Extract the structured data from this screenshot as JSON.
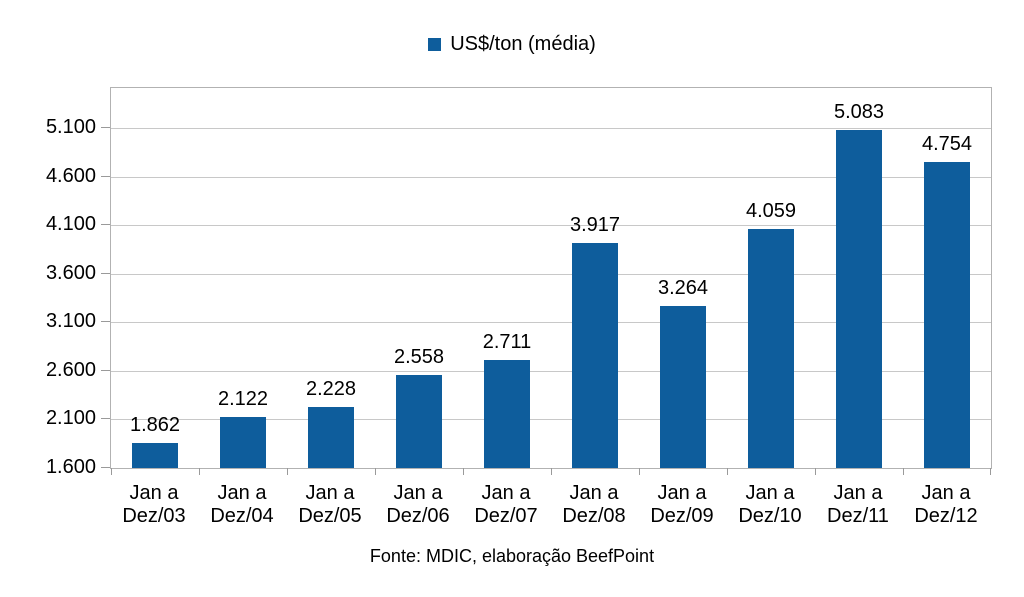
{
  "legend": {
    "label": "US$/ton (média)",
    "swatch_color": "#0e5d9c"
  },
  "source_note": "Fonte: MDIC, elaboração BeefPoint",
  "colors": {
    "bar": "#0e5d9c",
    "grid": "#c8c8c8",
    "plot_border": "#b2b2b2",
    "tick": "#9a9a9a",
    "text": "#000000",
    "background": "#ffffff"
  },
  "chart_data": {
    "type": "bar",
    "title": "",
    "series_name": "US$/ton (média)",
    "categories": [
      "Jan a Dez/03",
      "Jan a Dez/04",
      "Jan a Dez/05",
      "Jan a Dez/06",
      "Jan a Dez/07",
      "Jan a Dez/08",
      "Jan a Dez/09",
      "Jan a Dez/10",
      "Jan a Dez/11",
      "Jan a Dez/12"
    ],
    "categories_display": [
      "Jan a\nDez/03",
      "Jan a\nDez/04",
      "Jan a\nDez/05",
      "Jan a\nDez/06",
      "Jan a\nDez/07",
      "Jan a\nDez/08",
      "Jan a\nDez/09",
      "Jan a\nDez/10",
      "Jan a\nDez/11",
      "Jan a\nDez/12"
    ],
    "values": [
      1862,
      2122,
      2228,
      2558,
      2711,
      3917,
      3264,
      4059,
      5083,
      4754
    ],
    "value_labels": [
      "1.862",
      "2.122",
      "2.228",
      "2.558",
      "2.711",
      "3.917",
      "3.264",
      "4.059",
      "5.083",
      "4.754"
    ],
    "xlabel": "",
    "ylabel": "",
    "ylim": [
      1600,
      5512
    ],
    "yticks": [
      {
        "value": 1600,
        "label": "1.600"
      },
      {
        "value": 2100,
        "label": "2.100"
      },
      {
        "value": 2600,
        "label": "2.600"
      },
      {
        "value": 3100,
        "label": "3.100"
      },
      {
        "value": 3600,
        "label": "3.600"
      },
      {
        "value": 4100,
        "label": "4.100"
      },
      {
        "value": 4600,
        "label": "4.600"
      },
      {
        "value": 5100,
        "label": "5.100"
      }
    ],
    "grid": true,
    "legend_position": "top"
  }
}
